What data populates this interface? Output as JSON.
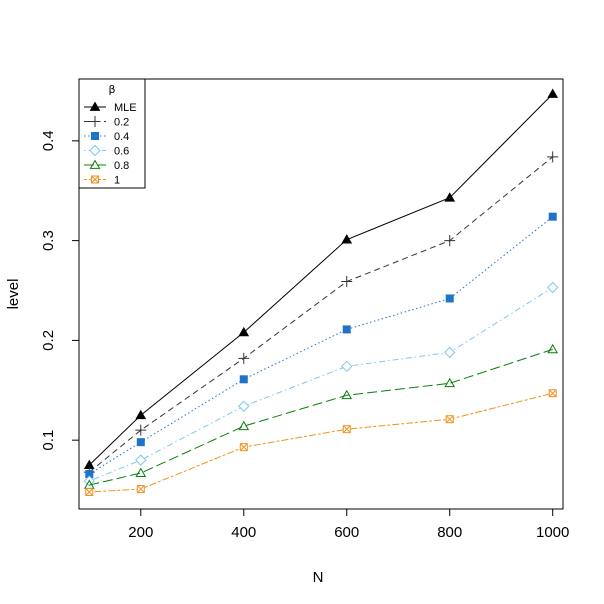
{
  "chart_data": {
    "type": "line",
    "title": "",
    "xlabel": "N",
    "ylabel": "level",
    "x": [
      100,
      200,
      400,
      600,
      800,
      1000
    ],
    "xlim": [
      80,
      1020
    ],
    "ylim": [
      0.031,
      0.462
    ],
    "xticks": [
      "200",
      "400",
      "600",
      "800",
      "1000"
    ],
    "yticks": [
      "0.1",
      "0.2",
      "0.3",
      "0.4"
    ],
    "grid": false,
    "legend": {
      "title": "β",
      "position": "top-left"
    },
    "series": [
      {
        "name": "MLE",
        "color": "#000000",
        "dash": "solid",
        "marker": "filled-triangle",
        "values": [
          0.075,
          0.125,
          0.208,
          0.301,
          0.343,
          0.447
        ]
      },
      {
        "name": "0.2",
        "color": "#333333",
        "dash": "dashed",
        "marker": "plus",
        "values": [
          0.068,
          0.11,
          0.182,
          0.259,
          0.3,
          0.384
        ]
      },
      {
        "name": "0.4",
        "color": "#1f73c8",
        "dash": "dotted",
        "marker": "filled-square",
        "values": [
          0.066,
          0.098,
          0.161,
          0.211,
          0.242,
          0.324
        ]
      },
      {
        "name": "0.6",
        "color": "#7ec8f0",
        "dash": "dotdash",
        "marker": "open-diamond",
        "values": [
          0.059,
          0.08,
          0.134,
          0.174,
          0.188,
          0.253
        ]
      },
      {
        "name": "0.8",
        "color": "#0a7f0a",
        "dash": "longdash",
        "marker": "open-triangle",
        "values": [
          0.055,
          0.067,
          0.114,
          0.145,
          0.157,
          0.191
        ]
      },
      {
        "name": "1",
        "color": "#f0921e",
        "dash": "twodash",
        "marker": "crossed-square",
        "values": [
          0.048,
          0.051,
          0.093,
          0.111,
          0.121,
          0.147
        ]
      }
    ]
  }
}
